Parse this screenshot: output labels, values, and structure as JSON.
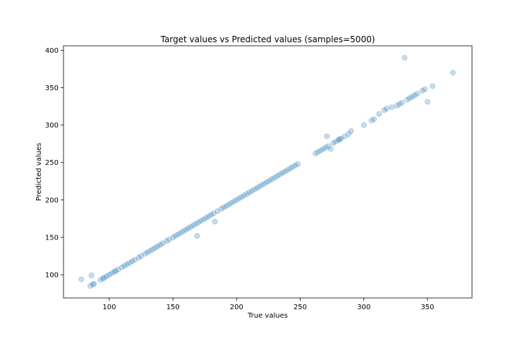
{
  "chart_data": {
    "type": "scatter",
    "title": "Target values vs Predicted values (samples=5000)",
    "xlabel": "True values",
    "ylabel": "Predicted values",
    "xlim": [
      64,
      385
    ],
    "ylim": [
      69,
      406
    ],
    "xticks": [
      100,
      150,
      200,
      250,
      300,
      350
    ],
    "yticks": [
      100,
      150,
      200,
      250,
      300,
      350,
      400
    ],
    "grid": false,
    "legend": "none",
    "marker_color": "#1f77b4",
    "marker_alpha": 0.25,
    "series": [
      {
        "x": [
          78,
          85,
          86,
          87,
          88,
          93,
          95,
          96,
          98,
          100,
          102,
          104,
          105,
          107,
          110,
          112,
          114,
          116,
          118,
          120,
          123,
          125,
          128,
          130,
          132,
          134,
          136,
          138,
          140,
          142,
          145,
          147,
          150,
          152,
          154,
          156,
          158,
          160,
          162,
          164,
          166,
          168,
          169,
          170,
          172,
          174,
          176,
          178,
          180,
          182,
          183,
          185,
          188,
          190,
          192,
          194,
          196,
          198,
          200,
          202,
          204,
          206,
          208,
          210,
          212,
          214,
          216,
          218,
          220,
          222,
          224,
          226,
          228,
          230,
          232,
          234,
          236,
          238,
          240,
          242,
          244,
          246,
          248,
          262,
          264,
          266,
          268,
          270,
          271,
          272,
          274,
          276,
          278,
          280,
          281,
          282,
          285,
          288,
          290,
          300,
          306,
          308,
          312,
          316,
          318,
          322,
          326,
          328,
          330,
          332,
          334,
          336,
          338,
          340,
          342,
          346,
          348,
          350,
          354,
          370
        ],
        "y": [
          94,
          85,
          99,
          87,
          88,
          93,
          95,
          96,
          98,
          100,
          102,
          104,
          105,
          107,
          110,
          112,
          114,
          116,
          118,
          120,
          123,
          125,
          128,
          130,
          132,
          134,
          136,
          138,
          140,
          142,
          145,
          147,
          150,
          152,
          154,
          156,
          158,
          160,
          162,
          164,
          166,
          168,
          152,
          170,
          172,
          174,
          176,
          178,
          180,
          182,
          171,
          185,
          188,
          190,
          192,
          194,
          196,
          198,
          200,
          202,
          204,
          206,
          208,
          210,
          212,
          214,
          216,
          218,
          220,
          222,
          224,
          226,
          228,
          230,
          232,
          234,
          236,
          238,
          240,
          242,
          244,
          246,
          248,
          262,
          264,
          266,
          268,
          270,
          285,
          272,
          268,
          276,
          278,
          280,
          281,
          282,
          285,
          288,
          292,
          300,
          306,
          308,
          315,
          320,
          322,
          324,
          326,
          328,
          330,
          390,
          334,
          336,
          338,
          340,
          342,
          346,
          348,
          331,
          352,
          370
        ]
      }
    ]
  }
}
